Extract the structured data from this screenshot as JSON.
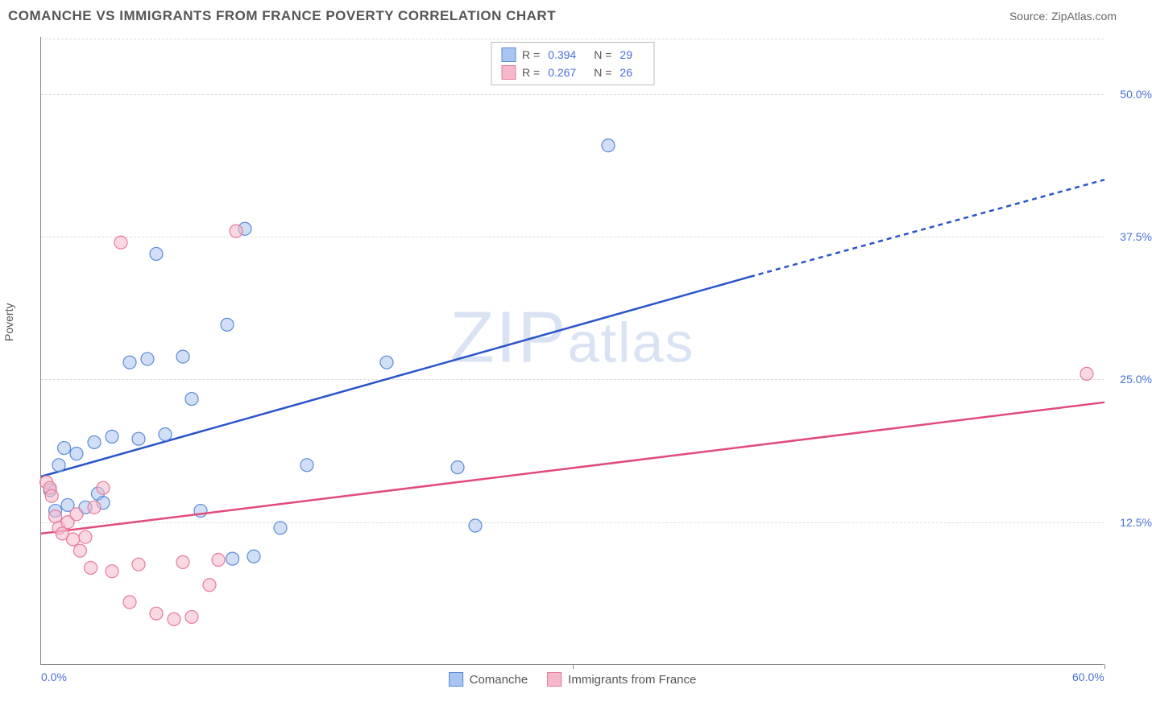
{
  "header": {
    "title": "COMANCHE VS IMMIGRANTS FROM FRANCE POVERTY CORRELATION CHART",
    "source": "Source: ZipAtlas.com"
  },
  "watermark": "ZIPatlas",
  "chart": {
    "type": "scatter",
    "y_axis_label": "Poverty",
    "xlim": [
      0,
      60
    ],
    "ylim": [
      0,
      55
    ],
    "x_ticks": [
      0,
      30,
      60
    ],
    "x_tick_labels": [
      "0.0%",
      "",
      "60.0%"
    ],
    "y_ticks": [
      12.5,
      25.0,
      37.5,
      50.0
    ],
    "y_tick_labels": [
      "12.5%",
      "25.0%",
      "37.5%",
      "50.0%"
    ],
    "grid_color": "#dddddd",
    "background_color": "#ffffff",
    "axis_color": "#888888",
    "tick_label_color": "#4a6fd8",
    "marker_radius": 8,
    "marker_opacity": 0.55,
    "trend_line_width": 2.5,
    "series": [
      {
        "name": "Comanche",
        "color_fill": "#a9c5ef",
        "color_stroke": "#5a8ad8",
        "trend_color": "#2a54c9",
        "R": 0.394,
        "N": 29,
        "trend": {
          "x1": 0,
          "y1": 16.5,
          "x2": 40,
          "y2": 34.0,
          "x_dash_from": 40,
          "x2_ext": 60,
          "y2_ext": 42.5
        },
        "points": [
          [
            0.5,
            15.3
          ],
          [
            0.8,
            13.5
          ],
          [
            1.0,
            17.5
          ],
          [
            1.3,
            19.0
          ],
          [
            1.5,
            14.0
          ],
          [
            2.0,
            18.5
          ],
          [
            2.5,
            13.8
          ],
          [
            3.0,
            19.5
          ],
          [
            3.2,
            15.0
          ],
          [
            3.5,
            14.2
          ],
          [
            4.0,
            20.0
          ],
          [
            5.0,
            26.5
          ],
          [
            5.5,
            19.8
          ],
          [
            6.0,
            26.8
          ],
          [
            6.5,
            36.0
          ],
          [
            7.0,
            20.2
          ],
          [
            8.0,
            27.0
          ],
          [
            8.5,
            23.3
          ],
          [
            9.0,
            13.5
          ],
          [
            10.5,
            29.8
          ],
          [
            10.8,
            9.3
          ],
          [
            11.5,
            38.2
          ],
          [
            12.0,
            9.5
          ],
          [
            13.5,
            12.0
          ],
          [
            15.0,
            17.5
          ],
          [
            19.5,
            26.5
          ],
          [
            23.5,
            17.3
          ],
          [
            24.5,
            12.2
          ],
          [
            32.0,
            45.5
          ]
        ]
      },
      {
        "name": "Immigrants from France",
        "color_fill": "#f5b8ca",
        "color_stroke": "#e77a9a",
        "trend_color": "#e14b7a",
        "R": 0.267,
        "N": 26,
        "trend": {
          "x1": 0,
          "y1": 11.5,
          "x2": 60,
          "y2": 23.0
        },
        "points": [
          [
            0.3,
            16.0
          ],
          [
            0.5,
            15.5
          ],
          [
            0.6,
            14.8
          ],
          [
            0.8,
            13.0
          ],
          [
            1.0,
            12.0
          ],
          [
            1.2,
            11.5
          ],
          [
            1.5,
            12.5
          ],
          [
            1.8,
            11.0
          ],
          [
            2.0,
            13.2
          ],
          [
            2.2,
            10.0
          ],
          [
            2.5,
            11.2
          ],
          [
            2.8,
            8.5
          ],
          [
            3.0,
            13.8
          ],
          [
            3.5,
            15.5
          ],
          [
            4.0,
            8.2
          ],
          [
            4.5,
            37.0
          ],
          [
            5.0,
            5.5
          ],
          [
            5.5,
            8.8
          ],
          [
            6.5,
            4.5
          ],
          [
            7.5,
            4.0
          ],
          [
            8.0,
            9.0
          ],
          [
            8.5,
            4.2
          ],
          [
            9.5,
            7.0
          ],
          [
            10.0,
            9.2
          ],
          [
            11.0,
            38.0
          ],
          [
            59.0,
            25.5
          ]
        ]
      }
    ],
    "legend_top": {
      "rows": [
        {
          "swatch_fill": "#a9c5ef",
          "swatch_stroke": "#5a8ad8",
          "r_label": "R =",
          "r_value": "0.394",
          "n_label": "N =",
          "n_value": "29"
        },
        {
          "swatch_fill": "#f5b8ca",
          "swatch_stroke": "#e77a9a",
          "r_label": "R =",
          "r_value": "0.267",
          "n_label": "N =",
          "n_value": "26"
        }
      ]
    },
    "legend_bottom": {
      "items": [
        {
          "swatch_fill": "#a9c5ef",
          "swatch_stroke": "#5a8ad8",
          "label": "Comanche"
        },
        {
          "swatch_fill": "#f5b8ca",
          "swatch_stroke": "#e77a9a",
          "label": "Immigrants from France"
        }
      ]
    }
  }
}
